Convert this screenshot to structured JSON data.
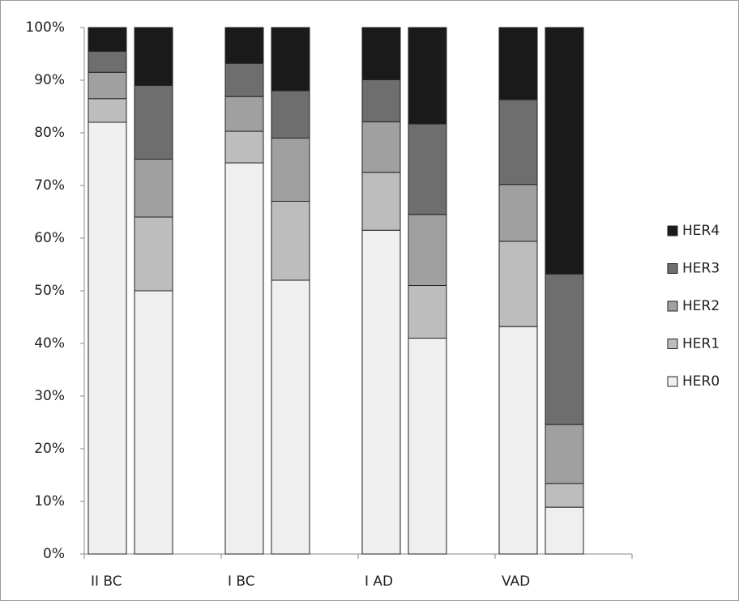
{
  "chart_data": {
    "type": "stacked-bar",
    "categories": [
      "II BC",
      null,
      "I BC",
      null,
      "I AD",
      null,
      "VAD",
      null
    ],
    "series": [
      {
        "name": "HER0",
        "color": "#efefef",
        "values": [
          82,
          50,
          74.3,
          52,
          61.5,
          41,
          43.2,
          8.9
        ]
      },
      {
        "name": "HER1",
        "color": "#bdbdbd",
        "values": [
          4.5,
          14,
          6,
          15,
          11,
          10,
          16.2,
          4.5
        ]
      },
      {
        "name": "HER2",
        "color": "#a0a0a0",
        "values": [
          5,
          11,
          6.6,
          12,
          9.6,
          13.5,
          10.8,
          11.2
        ]
      },
      {
        "name": "HER3",
        "color": "#6e6e6e",
        "values": [
          4,
          14,
          6.3,
          9,
          8,
          17.2,
          16.1,
          28.6
        ]
      },
      {
        "name": "HER4",
        "color": "#1a1a1a",
        "values": [
          4.5,
          11,
          6.8,
          12,
          9.9,
          18.3,
          13.7,
          46.8
        ]
      }
    ],
    "ylim": [
      0,
      100
    ],
    "yticks": [
      {
        "value": 0,
        "label": "0%"
      },
      {
        "value": 10,
        "label": "10%"
      },
      {
        "value": 20,
        "label": "20%"
      },
      {
        "value": 30,
        "label": "30%"
      },
      {
        "value": 40,
        "label": "40%"
      },
      {
        "value": 50,
        "label": "50%"
      },
      {
        "value": 60,
        "label": "60%"
      },
      {
        "value": 70,
        "label": "70%"
      },
      {
        "value": 80,
        "label": "80%"
      },
      {
        "value": 90,
        "label": "90%"
      },
      {
        "value": 100,
        "label": "100%"
      }
    ],
    "legend": "right"
  }
}
